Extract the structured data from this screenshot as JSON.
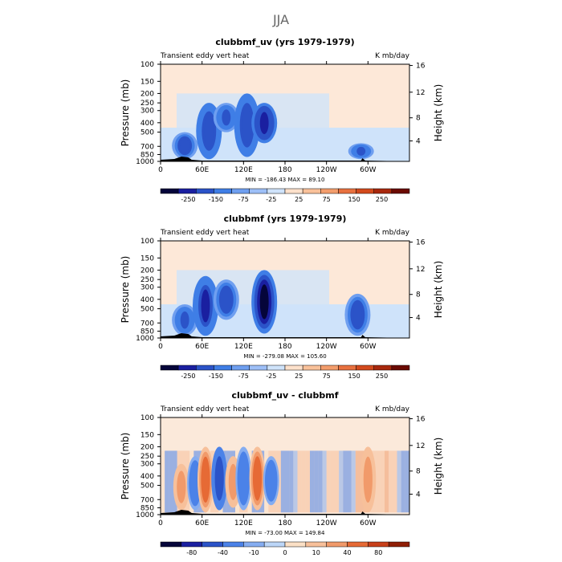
{
  "page_title": "JJA",
  "colors": {
    "blue_scale": [
      "#05053a",
      "#1a1fa0",
      "#2b53c8",
      "#3f7ee6",
      "#6f9ff0",
      "#9dbff7",
      "#cfe3fa"
    ],
    "red_scale": [
      "#fde1cb",
      "#f9c19a",
      "#f39d6c",
      "#e8713f",
      "#d34a1d",
      "#a8280d",
      "#6b0a02"
    ],
    "diff_blue": [
      "#05053a",
      "#1a1fa0",
      "#2b53c8",
      "#4b82e8",
      "#85adf1",
      "#bcd6f7"
    ],
    "diff_red": [
      "#fbe0c6",
      "#f7c09a",
      "#f19a6a",
      "#e66a35",
      "#c8401a",
      "#8f1e06"
    ],
    "land": "#000000"
  },
  "chart_data": [
    {
      "type": "heatmap",
      "title": "clubbmf_uv (yrs 1979-1979)",
      "left_label": "Transient eddy vert heat",
      "right_label": "K mb/day",
      "ylabel": "Pressure (mb)",
      "ylabel_right": "Height (km)",
      "x_ticks": [
        "0",
        "60E",
        "120E",
        "180",
        "120W",
        "60W"
      ],
      "y_ticks": [
        "100",
        "150",
        "200",
        "250",
        "300",
        "400",
        "500",
        "700",
        "850",
        "1000"
      ],
      "y_ticks_right": [
        "16",
        "12",
        "8",
        "4"
      ],
      "stats": "MIN = -186.43   MAX =  89.10",
      "colorbar_labels": [
        "-250",
        "-150",
        "-75",
        "-25",
        "25",
        "75",
        "150",
        "250"
      ],
      "features": [
        {
          "lon": 35,
          "p_top": 500,
          "p_bot": 950,
          "value": -120
        },
        {
          "lon": 70,
          "p_top": 250,
          "p_bot": 950,
          "value": -150
        },
        {
          "lon": 95,
          "p_top": 250,
          "p_bot": 500,
          "value": -100
        },
        {
          "lon": 125,
          "p_top": 200,
          "p_bot": 900,
          "value": -150
        },
        {
          "lon": 150,
          "p_top": 250,
          "p_bot": 650,
          "value": -180
        },
        {
          "lon": 290,
          "p_top": 650,
          "p_bot": 950,
          "value": -90
        }
      ]
    },
    {
      "type": "heatmap",
      "title": "clubbmf (yrs 1979-1979)",
      "left_label": "Transient eddy vert heat",
      "right_label": "K mb/day",
      "ylabel": "Pressure (mb)",
      "ylabel_right": "Height (km)",
      "x_ticks": [
        "0",
        "60E",
        "120E",
        "180",
        "120W",
        "60W"
      ],
      "y_ticks": [
        "100",
        "150",
        "200",
        "250",
        "300",
        "400",
        "500",
        "700",
        "850",
        "1000"
      ],
      "y_ticks_right": [
        "16",
        "12",
        "8",
        "4"
      ],
      "stats": "MIN = -279.08   MAX = 105.60",
      "colorbar_labels": [
        "-250",
        "-150",
        "-75",
        "-25",
        "25",
        "75",
        "150",
        "250"
      ],
      "features": [
        {
          "lon": 35,
          "p_top": 450,
          "p_bot": 950,
          "value": -100
        },
        {
          "lon": 65,
          "p_top": 230,
          "p_bot": 950,
          "value": -160
        },
        {
          "lon": 95,
          "p_top": 250,
          "p_bot": 650,
          "value": -120
        },
        {
          "lon": 150,
          "p_top": 200,
          "p_bot": 900,
          "value": -270
        },
        {
          "lon": 285,
          "p_top": 350,
          "p_bot": 950,
          "value": -120
        }
      ]
    },
    {
      "type": "heatmap",
      "title": "clubbmf_uv - clubbmf",
      "left_label": "Transient eddy vert heat",
      "right_label": "K mb/day",
      "ylabel": "Pressure (mb)",
      "ylabel_right": "Height (km)",
      "x_ticks": [
        "0",
        "60E",
        "120E",
        "180",
        "120W",
        "60W"
      ],
      "y_ticks": [
        "100",
        "150",
        "200",
        "250",
        "300",
        "400",
        "500",
        "700",
        "850",
        "1000"
      ],
      "y_ticks_right": [
        "16",
        "12",
        "8",
        "4"
      ],
      "stats": "MIN = -73.00   MAX = 149.84",
      "colorbar_labels": [
        "-80",
        "-40",
        "-10",
        "0",
        "10",
        "40",
        "80"
      ],
      "features": [
        {
          "lon": 30,
          "p_top": 300,
          "p_bot": 900,
          "value": 40
        },
        {
          "lon": 50,
          "p_top": 250,
          "p_bot": 900,
          "value": -40
        },
        {
          "lon": 65,
          "p_top": 200,
          "p_bot": 950,
          "value": 100
        },
        {
          "lon": 85,
          "p_top": 200,
          "p_bot": 900,
          "value": -50
        },
        {
          "lon": 105,
          "p_top": 250,
          "p_bot": 850,
          "value": 60
        },
        {
          "lon": 120,
          "p_top": 200,
          "p_bot": 900,
          "value": -40
        },
        {
          "lon": 140,
          "p_top": 200,
          "p_bot": 900,
          "value": 80
        },
        {
          "lon": 160,
          "p_top": 250,
          "p_bot": 800,
          "value": -30
        },
        {
          "lon": 300,
          "p_top": 200,
          "p_bot": 950,
          "value": 60
        }
      ]
    }
  ]
}
